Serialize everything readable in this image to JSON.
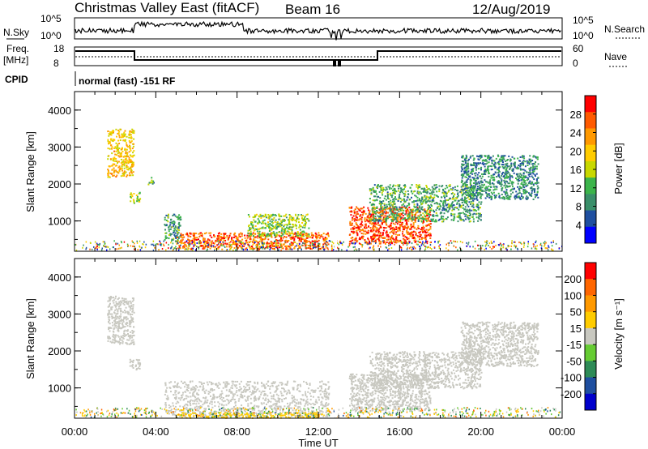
{
  "header": {
    "station": "Christmas Valley East (fitACF)",
    "beam": "Beam 16",
    "date": "12/Aug/2019"
  },
  "left_labels": {
    "nsky": "N.Sky",
    "freq_line1": "Freq.",
    "freq_line2": "[MHz]",
    "cpid": "CPID"
  },
  "right_labels": {
    "nsearch": "N.Search",
    "nave": "Nave"
  },
  "noise_axis": {
    "left_top": "10^5",
    "left_bottom": "10^0",
    "right_top": "10^5",
    "right_bottom": "10^0"
  },
  "freq_axis": {
    "left_top": "18",
    "left_bottom": "8",
    "right_top": "60",
    "right_bottom": "0"
  },
  "cpid_text": "normal (fast) -151 RF",
  "colors": {
    "power_scale": [
      "#0000ff",
      "#1f4fa0",
      "#3a8f6a",
      "#3cb44b",
      "#c8d800",
      "#ffcc00",
      "#ff9900",
      "#ff5a00",
      "#ff0000"
    ],
    "velocity_scale": [
      "#0000cc",
      "#1f4fa0",
      "#2e8b57",
      "#66cc33",
      "#c8c8c0",
      "#ffcc00",
      "#ff9900",
      "#ff6600",
      "#ff0000"
    ]
  },
  "chart_data": [
    {
      "type": "heatmap",
      "name": "power",
      "ylabel": "Slant Range [km]",
      "yticks": [
        "1000",
        "2000",
        "3000",
        "4000"
      ],
      "ylim": [
        180,
        4500
      ],
      "xlim": [
        0,
        24
      ],
      "colorbar": {
        "label": "Power [dB]",
        "ticks": [
          "4",
          "8",
          "12",
          "16",
          "20",
          "24",
          "28"
        ],
        "range": [
          0,
          32
        ]
      },
      "regions": [
        {
          "t0": 1.6,
          "t1": 2.9,
          "r0": 2200,
          "r1": 3500,
          "value": 20
        },
        {
          "t0": 2.7,
          "t1": 3.2,
          "r0": 1500,
          "r1": 1800,
          "value": 16
        },
        {
          "t0": 3.6,
          "t1": 3.9,
          "r0": 2000,
          "r1": 2200,
          "value": 12
        },
        {
          "t0": 4.4,
          "t1": 5.2,
          "r0": 500,
          "r1": 1200,
          "value": 10
        },
        {
          "t0": 5.0,
          "t1": 12.5,
          "r0": 250,
          "r1": 700,
          "value": 26
        },
        {
          "t0": 8.5,
          "t1": 11.5,
          "r0": 600,
          "r1": 1200,
          "value": 14
        },
        {
          "t0": 13.5,
          "t1": 17.5,
          "r0": 400,
          "r1": 1400,
          "value": 27
        },
        {
          "t0": 14.5,
          "t1": 20.0,
          "r0": 1000,
          "r1": 2000,
          "value": 11
        },
        {
          "t0": 19.0,
          "t1": 22.8,
          "r0": 1600,
          "r1": 2800,
          "value": 9
        }
      ]
    },
    {
      "type": "heatmap",
      "name": "velocity",
      "ylabel": "Slant Range [km]",
      "xlabel": "Time UT",
      "xticks": [
        "00:00",
        "04:00",
        "08:00",
        "12:00",
        "16:00",
        "20:00",
        "00:00"
      ],
      "yticks": [
        "1000",
        "2000",
        "3000",
        "4000"
      ],
      "ylim": [
        180,
        4500
      ],
      "xlim": [
        0,
        24
      ],
      "colorbar": {
        "label": "Velocity [m s⁻¹]",
        "ticks": [
          "200",
          "100",
          "50",
          "15",
          "-15",
          "-50",
          "-100",
          "-200"
        ],
        "range": [
          -250,
          250
        ]
      },
      "regions": [
        {
          "t0": 1.6,
          "t1": 2.9,
          "r0": 2200,
          "r1": 3500,
          "value": 0
        },
        {
          "t0": 2.7,
          "t1": 3.2,
          "r0": 1500,
          "r1": 1800,
          "value": 0
        },
        {
          "t0": 4.4,
          "t1": 12.5,
          "r0": 250,
          "r1": 1200,
          "value": 0
        },
        {
          "t0": 5.0,
          "t1": 12.0,
          "r0": 200,
          "r1": 350,
          "value": -40
        },
        {
          "t0": 13.5,
          "t1": 17.5,
          "r0": 400,
          "r1": 1400,
          "value": 0
        },
        {
          "t0": 14.5,
          "t1": 20.0,
          "r0": 1000,
          "r1": 2000,
          "value": 0
        },
        {
          "t0": 19.0,
          "t1": 22.8,
          "r0": 1600,
          "r1": 2800,
          "value": 0
        }
      ]
    }
  ]
}
